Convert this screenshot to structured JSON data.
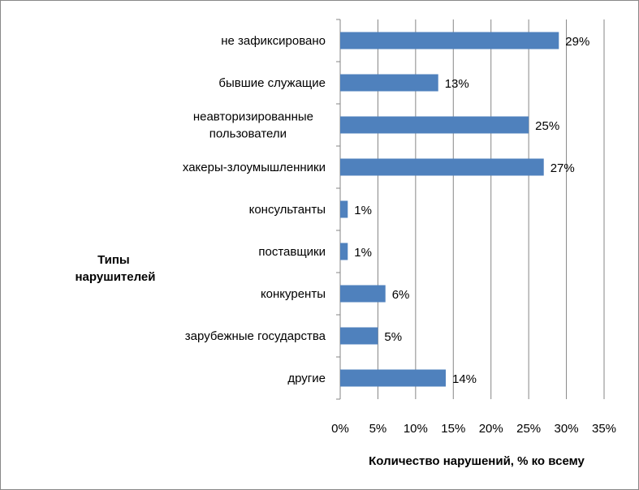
{
  "chart_data": {
    "type": "bar",
    "orientation": "horizontal",
    "categories": [
      "не зафиксировано",
      "бывшие служащие",
      "неавторизированные пользователи",
      "хакеры-злоумышленники",
      "консультанты",
      "поставщики",
      "конкуренты",
      "зарубежные государства",
      "другие"
    ],
    "category_lines": [
      [
        "не зафиксировано"
      ],
      [
        "бывшие служащие"
      ],
      [
        "неавторизированные",
        "пользователи"
      ],
      [
        "хакеры-злоумышленники"
      ],
      [
        "консультанты"
      ],
      [
        "поставщики"
      ],
      [
        "конкуренты"
      ],
      [
        "зарубежные государства"
      ],
      [
        "другие"
      ]
    ],
    "values": [
      29,
      13,
      25,
      27,
      1,
      1,
      6,
      5,
      14
    ],
    "data_labels": [
      "29%",
      "13%",
      "25%",
      "27%",
      "1%",
      "1%",
      "6%",
      "5%",
      "14%"
    ],
    "x_ticks": [
      0,
      5,
      10,
      15,
      20,
      25,
      30,
      35
    ],
    "x_tick_labels": [
      "0%",
      "5%",
      "10%",
      "15%",
      "20%",
      "25%",
      "30%",
      "35%"
    ],
    "xlim": [
      0,
      35
    ],
    "xlabel": "Количество нарушений, % ко всему",
    "ylabel_lines": [
      "Типы",
      "нарушителей"
    ],
    "grid": "vertical",
    "bar_color": "#4F81BD",
    "grid_color": "#868686"
  }
}
